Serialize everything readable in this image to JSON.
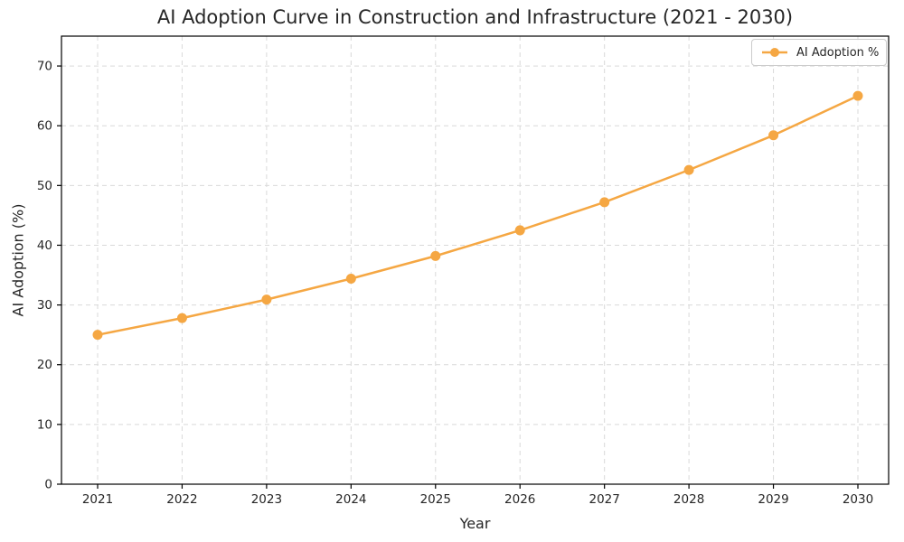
{
  "chart_data": {
    "type": "line",
    "title": "AI Adoption Curve in Construction and Infrastructure (2021 - 2030)",
    "xlabel": "Year",
    "ylabel": "AI Adoption (%)",
    "categories": [
      "2021",
      "2022",
      "2023",
      "2024",
      "2025",
      "2026",
      "2027",
      "2028",
      "2029",
      "2030"
    ],
    "series": [
      {
        "name": "AI Adoption %",
        "values": [
          25.0,
          27.8,
          30.9,
          34.4,
          38.2,
          42.5,
          47.2,
          52.6,
          58.4,
          65.0
        ],
        "color": "#F5A743",
        "marker": "circle"
      }
    ],
    "ylim": [
      0,
      75
    ],
    "yticks": [
      0,
      10,
      20,
      30,
      40,
      50,
      60,
      70
    ],
    "grid": true,
    "grid_style": "dashed",
    "legend_position": "upper right"
  },
  "legend": {
    "label": "AI Adoption %"
  },
  "colors": {
    "line": "#F5A743",
    "grid": "#d9d9d9",
    "spine": "#000000",
    "text": "#262626",
    "background": "#ffffff",
    "legend_border": "#cccccc"
  }
}
